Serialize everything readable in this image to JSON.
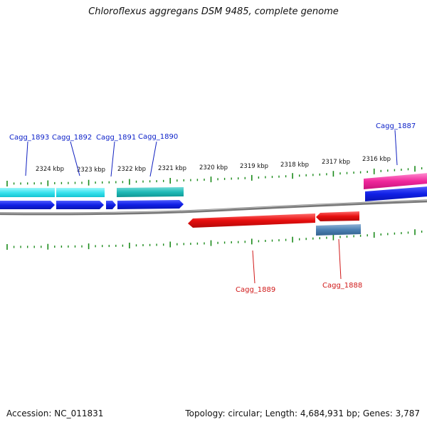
{
  "title": "Chloroflexus aggregans DSM 9485, complete genome",
  "footer": {
    "accession": "Accession: NC_011831",
    "summary": "Topology: circular; Length: 4,684,931 bp; Genes: 3,787"
  },
  "colors": {
    "forward_label": "#0a1fc8",
    "reverse_label": "#d01818",
    "tick": "#1a8a1a",
    "backbone": "#7a7a7a"
  },
  "ticks": [
    {
      "label": "2324 kbp"
    },
    {
      "label": "2323 kbp"
    },
    {
      "label": "2322 kbp"
    },
    {
      "label": "2321 kbp"
    },
    {
      "label": "2320 kbp"
    },
    {
      "label": "2319 kbp"
    },
    {
      "label": "2318 kbp"
    },
    {
      "label": "2317 kbp"
    },
    {
      "label": "2316 kbp"
    }
  ],
  "genes": [
    {
      "name": "Cagg_1893",
      "strand": "forward"
    },
    {
      "name": "Cagg_1892",
      "strand": "forward"
    },
    {
      "name": "Cagg_1891",
      "strand": "forward"
    },
    {
      "name": "Cagg_1890",
      "strand": "forward"
    },
    {
      "name": "Cagg_1887",
      "strand": "forward"
    },
    {
      "name": "Cagg_1889",
      "strand": "reverse"
    },
    {
      "name": "Cagg_1888",
      "strand": "reverse"
    }
  ]
}
